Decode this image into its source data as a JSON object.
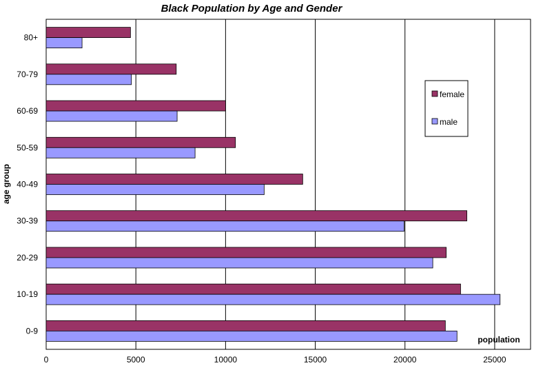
{
  "chart_data": {
    "type": "bar",
    "orientation": "horizontal",
    "title": "Black Population by Age and Gender",
    "xlabel": "population",
    "ylabel": "age group",
    "xlim": [
      0,
      27000
    ],
    "xticks": [
      0,
      5000,
      10000,
      15000,
      20000,
      25000
    ],
    "grid": "vertical",
    "legend_position": "right",
    "categories": [
      "80+",
      "70-79",
      "60-69",
      "50-59",
      "40-49",
      "30-39",
      "20-29",
      "10-19",
      "0-9"
    ],
    "series": [
      {
        "name": "female",
        "color": "#993366",
        "values": [
          4700,
          7250,
          10000,
          10550,
          14300,
          23450,
          22300,
          23100,
          22250
        ]
      },
      {
        "name": "male",
        "color": "#9999ff",
        "values": [
          2000,
          4750,
          7300,
          8300,
          12150,
          19950,
          21550,
          25300,
          22900
        ]
      }
    ]
  }
}
